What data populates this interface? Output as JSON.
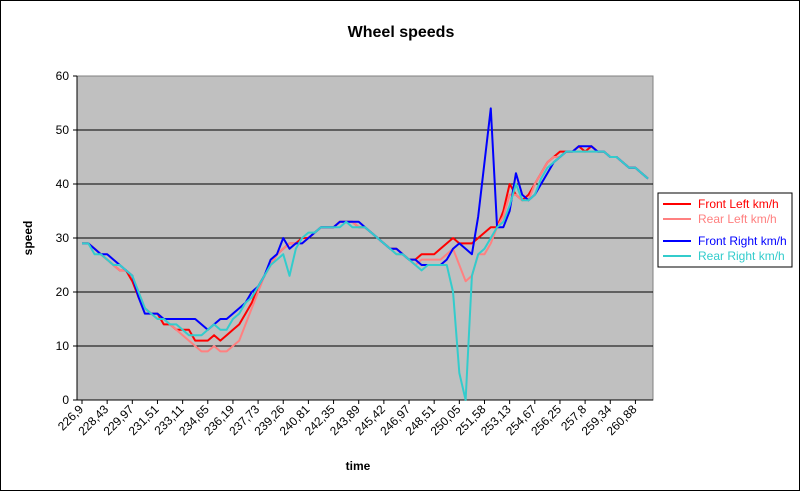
{
  "chart_data": {
    "type": "line",
    "title": "Wheel speeds",
    "xlabel": "time",
    "ylabel": "speed",
    "ylim": [
      0,
      60
    ],
    "yticks": [
      0,
      10,
      20,
      30,
      40,
      50,
      60
    ],
    "xtick_labels": [
      "226,9",
      "228,43",
      "229,97",
      "231,51",
      "233,11",
      "234,65",
      "236,19",
      "237,73",
      "239,26",
      "240,81",
      "242,35",
      "243,89",
      "245,42",
      "246,97",
      "248,51",
      "250,05",
      "251,58",
      "253,13",
      "254,67",
      "256,25",
      "257,8",
      "259,34",
      "260,88"
    ],
    "grid": true,
    "legend_position": "right",
    "plot_background": "#c0c0c0",
    "series": [
      {
        "name": "Front Left km/h",
        "color": "#ff0000",
        "values": [
          29,
          29,
          28,
          27,
          26,
          25,
          24,
          24,
          22,
          19,
          17,
          16,
          16,
          14,
          14,
          13,
          13,
          13,
          11,
          11,
          11,
          12,
          11,
          12,
          13,
          14,
          16,
          18,
          21,
          23,
          25,
          27,
          28,
          29,
          29,
          30,
          30,
          31,
          32,
          32,
          32,
          33,
          33,
          33,
          32,
          32,
          31,
          30,
          29,
          28,
          28,
          27,
          26,
          26,
          27,
          27,
          27,
          28,
          29,
          30,
          29,
          29,
          29,
          30,
          31,
          32,
          32,
          35,
          40,
          38,
          37,
          38,
          40,
          42,
          44,
          45,
          46,
          46,
          46,
          47,
          46,
          47,
          46,
          46,
          45,
          45,
          44,
          43,
          43,
          42,
          41
        ]
      },
      {
        "name": "Rear Left km/h",
        "color": "#ff8080",
        "values": [
          29,
          29,
          28,
          27,
          26,
          25,
          24,
          24,
          23,
          20,
          17,
          16,
          16,
          15,
          14,
          13,
          12,
          11,
          10,
          9,
          9,
          10,
          9,
          9,
          10,
          11,
          14,
          17,
          20,
          23,
          25,
          27,
          28,
          29,
          29,
          29,
          30,
          31,
          32,
          32,
          32,
          33,
          33,
          33,
          32,
          32,
          31,
          30,
          29,
          28,
          27,
          27,
          26,
          25,
          26,
          26,
          26,
          26,
          27,
          28,
          25,
          22,
          23,
          27,
          27,
          29,
          32,
          34,
          38,
          38,
          37,
          37,
          40,
          42,
          44,
          45,
          45,
          46,
          46,
          46,
          46,
          46,
          46,
          46,
          45,
          45,
          44,
          43,
          43,
          42,
          41
        ]
      },
      {
        "name": "Front Right km/h",
        "color": "#0000ff",
        "values": [
          29,
          29,
          28,
          27,
          27,
          26,
          25,
          24,
          23,
          19,
          16,
          16,
          16,
          15,
          15,
          15,
          15,
          15,
          15,
          14,
          13,
          14,
          15,
          15,
          16,
          17,
          18,
          20,
          21,
          23,
          26,
          27,
          30,
          28,
          29,
          29,
          30,
          31,
          32,
          32,
          32,
          33,
          33,
          33,
          33,
          32,
          31,
          30,
          29,
          28,
          28,
          27,
          26,
          26,
          25,
          25,
          25,
          25,
          26,
          28,
          29,
          28,
          27,
          34,
          44,
          54,
          32,
          32,
          35,
          42,
          38,
          37,
          38,
          40,
          42,
          44,
          45,
          46,
          46,
          47,
          47,
          47,
          46,
          46,
          45,
          45,
          44,
          43,
          43,
          42,
          41
        ]
      },
      {
        "name": "Rear Right km/h",
        "color": "#33cccc",
        "values": [
          29,
          29,
          27,
          27,
          26,
          25,
          25,
          24,
          23,
          20,
          17,
          16,
          15,
          15,
          14,
          14,
          13,
          12,
          12,
          12,
          13,
          14,
          13,
          13,
          15,
          16,
          18,
          19,
          21,
          23,
          25,
          26,
          27,
          23,
          28,
          30,
          31,
          31,
          32,
          32,
          32,
          32,
          33,
          32,
          32,
          32,
          31,
          30,
          29,
          28,
          27,
          27,
          26,
          25,
          24,
          25,
          25,
          25,
          25,
          20,
          5,
          0,
          23,
          27,
          28,
          30,
          32,
          33,
          36,
          40,
          37,
          37,
          38,
          41,
          43,
          44,
          45,
          46,
          46,
          46,
          46,
          46,
          46,
          46,
          45,
          45,
          44,
          43,
          43,
          42,
          41
        ]
      }
    ]
  }
}
